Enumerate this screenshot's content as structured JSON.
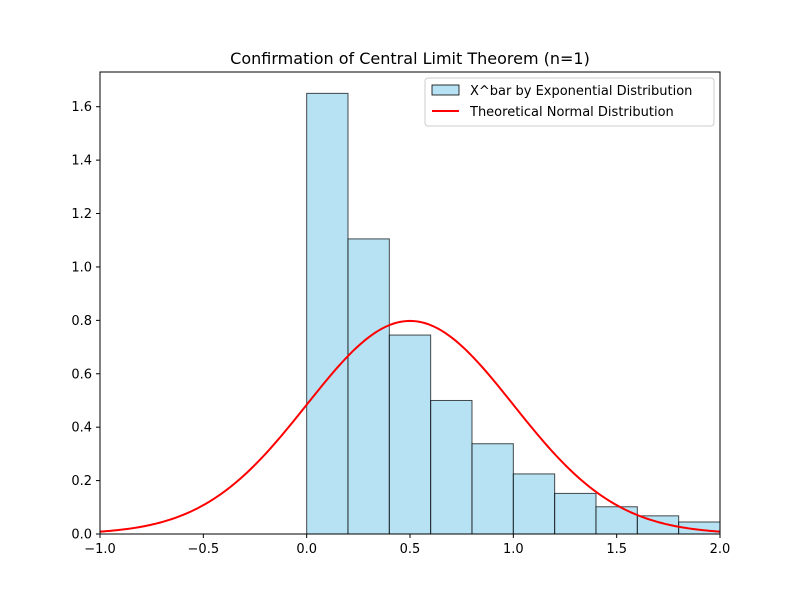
{
  "chart_data": {
    "type": "bar",
    "title": "Confirmation of Central Limit Theorem (n=1)",
    "xlabel": "",
    "ylabel": "",
    "xlim": [
      -1.0,
      2.0
    ],
    "ylim": [
      0,
      1.73
    ],
    "grid": false,
    "legend_position": "top-right",
    "x_ticks": [
      -1.0,
      -0.5,
      0.0,
      0.5,
      1.0,
      1.5,
      2.0
    ],
    "x_tick_labels": [
      "−1.0",
      "−0.5",
      "0.0",
      "0.5",
      "1.0",
      "1.5",
      "2.0"
    ],
    "y_ticks": [
      0.0,
      0.2,
      0.4,
      0.6,
      0.8,
      1.0,
      1.2,
      1.4,
      1.6
    ],
    "y_tick_labels": [
      "0.0",
      "0.2",
      "0.4",
      "0.6",
      "0.8",
      "1.0",
      "1.2",
      "1.4",
      "1.6"
    ],
    "histogram": {
      "name": "X^bar by Exponential Distribution",
      "color": "#87CEEB",
      "edge_color": "#000000",
      "bin_edges": [
        0.0,
        0.2,
        0.4,
        0.6,
        0.8,
        1.0,
        1.2,
        1.4,
        1.6,
        1.8,
        2.0
      ],
      "densities": [
        1.65,
        1.105,
        0.745,
        0.5,
        0.338,
        0.225,
        0.152,
        0.102,
        0.068,
        0.045
      ]
    },
    "curve": {
      "name": "Theoretical Normal Distribution",
      "color": "#FF0000",
      "distribution": "normal",
      "mean": 0.5,
      "sd": 0.5
    }
  }
}
